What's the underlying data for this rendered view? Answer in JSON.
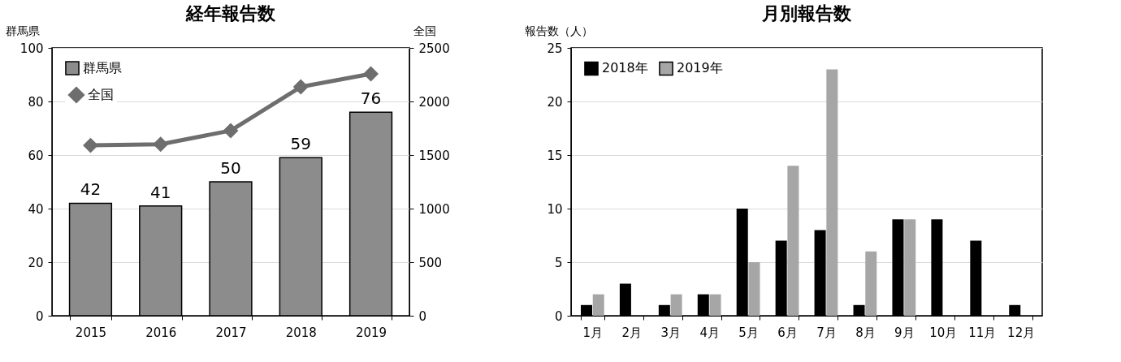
{
  "chart_data": [
    {
      "type": "bar",
      "title": "経年報告数",
      "ylabel": "群馬県",
      "y2label": "全国",
      "categories": [
        "2015",
        "2016",
        "2017",
        "2018",
        "2019"
      ],
      "series": [
        {
          "name": "群馬県",
          "type": "bar",
          "color": "#8c8c8c",
          "values": [
            42,
            41,
            50,
            59,
            76
          ],
          "value_labels": [
            "42",
            "41",
            "50",
            "59",
            "76"
          ]
        },
        {
          "name": "全国",
          "type": "line",
          "axis": "y2",
          "color": "#6e6e6e",
          "marker": "diamond",
          "values": [
            1590,
            1600,
            1728,
            2136,
            2257
          ]
        }
      ],
      "ylim": [
        0,
        100
      ],
      "yticks": [
        0,
        20,
        40,
        60,
        80,
        100
      ],
      "y2lim": [
        0,
        2500
      ],
      "y2ticks": [
        0,
        500,
        1000,
        1500,
        2000,
        2500
      ],
      "grid": "y",
      "legend": "top left"
    },
    {
      "type": "bar",
      "title": "月別報告数",
      "ylabel": "報告数（人）",
      "categories": [
        "1月",
        "2月",
        "3月",
        "4月",
        "5月",
        "6月",
        "7月",
        "8月",
        "9月",
        "10月",
        "11月",
        "12月"
      ],
      "series": [
        {
          "name": "2018年",
          "color": "#000000",
          "values": [
            1,
            3,
            1,
            2,
            10,
            7,
            8,
            1,
            9,
            9,
            7,
            1
          ]
        },
        {
          "name": "2019年",
          "color": "#a6a6a6",
          "values": [
            2,
            0,
            2,
            2,
            5,
            14,
            23,
            6,
            9,
            0,
            0,
            0
          ]
        }
      ],
      "ylim": [
        0,
        25
      ],
      "yticks": [
        0,
        5,
        10,
        15,
        20,
        25
      ],
      "grid": "y",
      "legend": "top left"
    }
  ]
}
